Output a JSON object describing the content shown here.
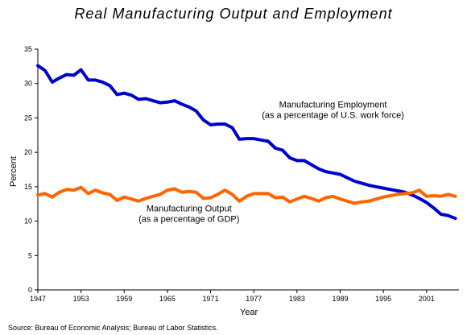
{
  "chart_data": {
    "type": "line",
    "title": "Real Manufacturing Output and Employment",
    "xlabel": "Year",
    "ylabel": "Percent",
    "xlim": [
      1947,
      2005.5
    ],
    "ylim": [
      0,
      35
    ],
    "x_ticks": [
      1947,
      1953,
      1959,
      1965,
      1971,
      1977,
      1983,
      1989,
      1995,
      2001
    ],
    "y_ticks": [
      0,
      5,
      10,
      15,
      20,
      25,
      30,
      35
    ],
    "grid": false,
    "legend": "none",
    "source": "Source: Bureau of Economic Analysis; Bureau of Labor Statistics.",
    "annotations": [
      {
        "series": "employment",
        "lines": [
          "Manufacturing Employment",
          "(as a percentage of U.S. work force)"
        ],
        "x": 1988,
        "y": 26.5
      },
      {
        "series": "output",
        "lines": [
          "Manufacturing Output",
          "(as a percentage of GDP)"
        ],
        "x": 1968,
        "y": 11.4
      }
    ],
    "series": [
      {
        "key": "employment",
        "color": "#0000cc",
        "x": [
          1947,
          1948,
          1949,
          1950,
          1951,
          1952,
          1953,
          1954,
          1955,
          1956,
          1957,
          1958,
          1959,
          1960,
          1961,
          1962,
          1963,
          1964,
          1965,
          1966,
          1967,
          1968,
          1969,
          1970,
          1971,
          1972,
          1973,
          1974,
          1975,
          1976,
          1977,
          1978,
          1979,
          1980,
          1981,
          1982,
          1983,
          1984,
          1985,
          1986,
          1987,
          1988,
          1989,
          1990,
          1991,
          1992,
          1993,
          1994,
          1995,
          1996,
          1997,
          1998,
          1999,
          2000,
          2001,
          2002,
          2003,
          2004,
          2005
        ],
        "values": [
          32.6,
          31.9,
          30.2,
          30.8,
          31.3,
          31.2,
          32.0,
          30.5,
          30.5,
          30.2,
          29.7,
          28.4,
          28.6,
          28.3,
          27.7,
          27.8,
          27.5,
          27.2,
          27.3,
          27.5,
          27.0,
          26.6,
          26.0,
          24.7,
          24.0,
          24.1,
          24.1,
          23.6,
          21.9,
          22.0,
          22.0,
          21.8,
          21.6,
          20.6,
          20.3,
          19.2,
          18.8,
          18.8,
          18.2,
          17.6,
          17.2,
          17.0,
          16.8,
          16.3,
          15.8,
          15.5,
          15.2,
          15.0,
          14.8,
          14.6,
          14.4,
          14.2,
          13.8,
          13.3,
          12.7,
          11.9,
          11.0,
          10.8,
          10.4
        ]
      },
      {
        "key": "output",
        "color": "#ff6600",
        "x": [
          1947,
          1948,
          1949,
          1950,
          1951,
          1952,
          1953,
          1954,
          1955,
          1956,
          1957,
          1958,
          1959,
          1960,
          1961,
          1962,
          1963,
          1964,
          1965,
          1966,
          1967,
          1968,
          1969,
          1970,
          1971,
          1972,
          1973,
          1974,
          1975,
          1976,
          1977,
          1978,
          1979,
          1980,
          1981,
          1982,
          1983,
          1984,
          1985,
          1986,
          1987,
          1988,
          1989,
          1990,
          1991,
          1992,
          1993,
          1994,
          1995,
          1996,
          1997,
          1998,
          1999,
          2000,
          2001,
          2002,
          2003,
          2004,
          2005
        ],
        "values": [
          13.8,
          14.0,
          13.5,
          14.2,
          14.6,
          14.5,
          14.9,
          14.0,
          14.5,
          14.1,
          13.9,
          13.0,
          13.5,
          13.2,
          12.9,
          13.3,
          13.6,
          13.9,
          14.5,
          14.7,
          14.2,
          14.3,
          14.2,
          13.3,
          13.4,
          13.9,
          14.5,
          13.9,
          12.9,
          13.6,
          14.0,
          14.0,
          14.0,
          13.4,
          13.5,
          12.8,
          13.2,
          13.6,
          13.3,
          12.9,
          13.4,
          13.6,
          13.2,
          12.9,
          12.6,
          12.8,
          12.9,
          13.2,
          13.5,
          13.7,
          13.9,
          14.0,
          14.1,
          14.5,
          13.6,
          13.7,
          13.6,
          13.9,
          13.6
        ]
      }
    ]
  }
}
